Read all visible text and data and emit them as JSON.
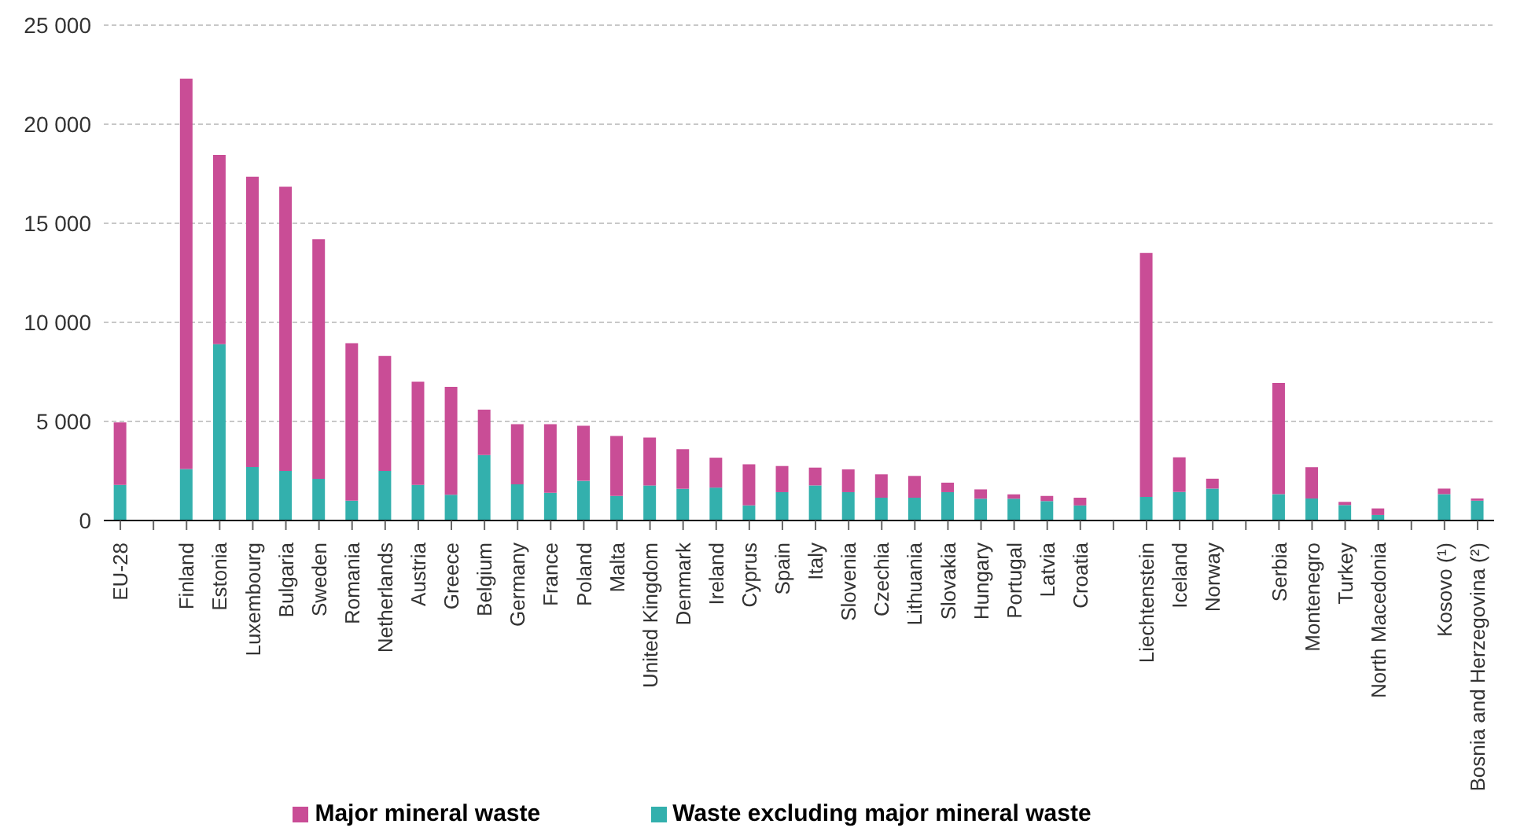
{
  "chart_data": {
    "type": "bar",
    "stacked": true,
    "categories": [
      "EU-28",
      null,
      "Finland",
      "Estonia",
      "Luxembourg",
      "Bulgaria",
      "Sweden",
      "Romania",
      "Netherlands",
      "Austria",
      "Greece",
      "Belgium",
      "Germany",
      "France",
      "Poland",
      "Malta",
      "United Kingdom",
      "Denmark",
      "Ireland",
      "Cyprus",
      "Spain",
      "Italy",
      "Slovenia",
      "Czechia",
      "Lithuania",
      "Slovakia",
      "Hungary",
      "Portugal",
      "Latvia",
      "Croatia",
      null,
      "Liechtenstein",
      "Iceland",
      "Norway",
      null,
      "Serbia",
      "Montenegro",
      "Turkey",
      "North Macedonia",
      null,
      "Kosovo (¹)",
      "Bosnia and Herzegovina (²)"
    ],
    "series": [
      {
        "name": "Waste excluding major mineral waste",
        "color": "#33b0ad",
        "values": [
          1800,
          null,
          2600,
          8900,
          2700,
          2500,
          2100,
          1000,
          2500,
          1800,
          1300,
          3300,
          1830,
          1400,
          2000,
          1240,
          1770,
          1600,
          1660,
          760,
          1430,
          1770,
          1430,
          1150,
          1150,
          1430,
          1100,
          1100,
          980,
          760,
          null,
          1190,
          1440,
          1610,
          null,
          1330,
          1110,
          780,
          280,
          null,
          1330,
          1000
        ]
      },
      {
        "name": "Major mineral waste",
        "color": "#c94d96",
        "values": [
          3150,
          null,
          19700,
          9550,
          14650,
          14350,
          12100,
          7950,
          5800,
          5200,
          5450,
          2300,
          3030,
          3460,
          2780,
          3030,
          2420,
          2000,
          1510,
          2080,
          1320,
          900,
          1150,
          1180,
          1100,
          480,
          470,
          220,
          260,
          390,
          null,
          12310,
          1750,
          500,
          null,
          5610,
          1580,
          160,
          330,
          null,
          280,
          110
        ]
      }
    ],
    "ylim": [
      0,
      25000
    ],
    "yticks": [
      {
        "value": 0,
        "label": "0"
      },
      {
        "value": 5000,
        "label": "5 000"
      },
      {
        "value": 10000,
        "label": "10 000"
      },
      {
        "value": 15000,
        "label": "15 000"
      },
      {
        "value": 20000,
        "label": "20 000"
      },
      {
        "value": 25000,
        "label": "25 000"
      }
    ],
    "grid": "y",
    "legend": "bottom"
  }
}
